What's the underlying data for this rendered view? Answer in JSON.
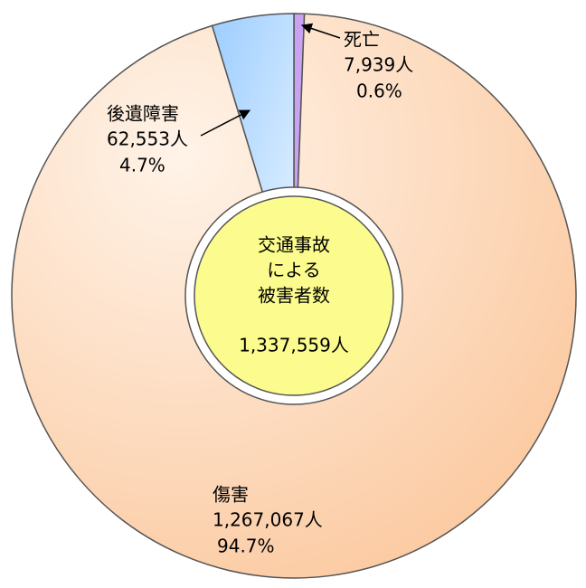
{
  "chart_data": {
    "type": "pie",
    "categories": [
      "死亡",
      "傷害",
      "後遺障害"
    ],
    "values": [
      7939,
      1267067,
      62553
    ],
    "value_labels": [
      "7,939人",
      "1,267,067人",
      "62,553人"
    ],
    "percent_labels": [
      "0.6%",
      "94.7%",
      "4.7%"
    ],
    "colors": [
      "#c9a2f2",
      "#fcd2ae",
      "#b5dbff"
    ],
    "center_title": [
      "交通事故",
      "による",
      "被害者数"
    ],
    "total_label": "1,337,559人"
  }
}
